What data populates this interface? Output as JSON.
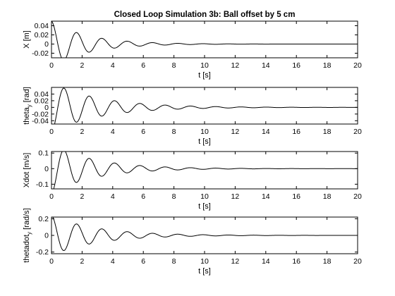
{
  "chart_data": [
    {
      "type": "line",
      "title": "Closed Loop Simulation 3b: Ball offset by 5 cm",
      "xlabel": "t [s]",
      "ylabel": "X [m]",
      "xlim": [
        0,
        20
      ],
      "ylim": [
        -0.03,
        0.05
      ],
      "xticks": [
        0,
        2,
        4,
        6,
        8,
        10,
        12,
        14,
        16,
        18,
        20
      ],
      "yticks": [
        -0.02,
        0,
        0.02,
        0.04
      ],
      "ytick_labels": [
        "-0.02",
        "0",
        "0.02",
        "0.04"
      ],
      "series": [
        {
          "signal": {
            "amp": 0.05,
            "decay": 0.42,
            "omega": 3.8,
            "phase": 0
          }
        }
      ]
    },
    {
      "type": "line",
      "xlabel": "t [s]",
      "ylabel": "theta",
      "ylabel_sub": "y",
      "ylabel_unit": " [rad]",
      "xlim": [
        0,
        20
      ],
      "ylim": [
        -0.05,
        0.06
      ],
      "xticks": [
        0,
        2,
        4,
        6,
        8,
        10,
        12,
        14,
        16,
        18,
        20
      ],
      "yticks": [
        -0.04,
        -0.02,
        0,
        0.02,
        0.04
      ],
      "ytick_labels": [
        "-0.04",
        "-0.02",
        "0",
        "0.02",
        "0.04"
      ],
      "series": [
        {
          "signal": {
            "amp": -0.075,
            "decay": 0.32,
            "omega": 3.8,
            "phase": 0
          }
        }
      ]
    },
    {
      "type": "line",
      "xlabel": "t [s]",
      "ylabel": "Xdot [m/s]",
      "xlim": [
        0,
        20
      ],
      "ylim": [
        -0.13,
        0.11
      ],
      "xticks": [
        0,
        2,
        4,
        6,
        8,
        10,
        12,
        14,
        16,
        18,
        20
      ],
      "yticks": [
        -0.1,
        0,
        0.1
      ],
      "ytick_labels": [
        "-0.1",
        "0",
        "0.1"
      ],
      "series": [
        {
          "signal": {
            "amp": -0.16,
            "decay": 0.36,
            "omega": 3.8,
            "phase": 0
          }
        }
      ]
    },
    {
      "type": "line",
      "xlabel": "t [s]",
      "ylabel": "thetadot",
      "ylabel_sub": "y",
      "ylabel_unit": " [rad/s]",
      "xlim": [
        0,
        20
      ],
      "ylim": [
        -0.22,
        0.22
      ],
      "xticks": [
        0,
        2,
        4,
        6,
        8,
        10,
        12,
        14,
        16,
        18,
        20
      ],
      "yticks": [
        -0.2,
        0,
        0.2
      ],
      "ytick_labels": [
        "-0.2",
        "0",
        "0.2"
      ],
      "series": [
        {
          "signal": {
            "amp": 0.24,
            "decay": 0.34,
            "omega": 3.8,
            "phase": 0
          }
        }
      ]
    }
  ]
}
